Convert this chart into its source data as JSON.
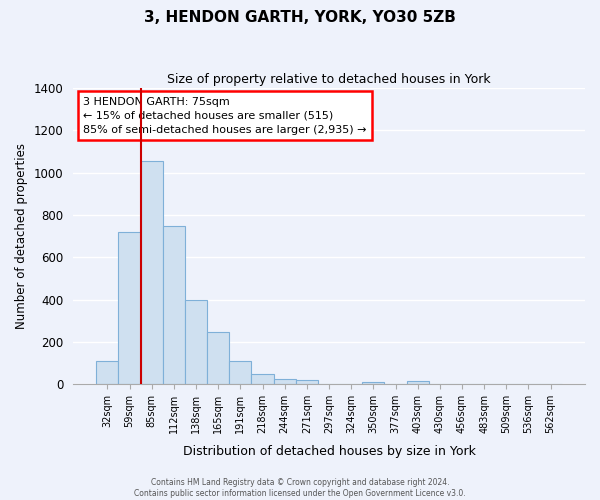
{
  "title": "3, HENDON GARTH, YORK, YO30 5ZB",
  "subtitle": "Size of property relative to detached houses in York",
  "xlabel": "Distribution of detached houses by size in York",
  "ylabel": "Number of detached properties",
  "bar_labels": [
    "32sqm",
    "59sqm",
    "85sqm",
    "112sqm",
    "138sqm",
    "165sqm",
    "191sqm",
    "218sqm",
    "244sqm",
    "271sqm",
    "297sqm",
    "324sqm",
    "350sqm",
    "377sqm",
    "403sqm",
    "430sqm",
    "456sqm",
    "483sqm",
    "509sqm",
    "536sqm",
    "562sqm"
  ],
  "bar_heights": [
    110,
    720,
    1055,
    750,
    400,
    245,
    110,
    50,
    27,
    22,
    0,
    0,
    10,
    0,
    15,
    0,
    0,
    0,
    0,
    0,
    0
  ],
  "bar_color": "#cfe0f0",
  "bar_edge_color": "#7fb0d8",
  "vline_color": "#cc0000",
  "ylim": [
    0,
    1400
  ],
  "yticks": [
    0,
    200,
    400,
    600,
    800,
    1000,
    1200,
    1400
  ],
  "annotation_title": "3 HENDON GARTH: 75sqm",
  "annotation_line1": "← 15% of detached houses are smaller (515)",
  "annotation_line2": "85% of semi-detached houses are larger (2,935) →",
  "footer_line1": "Contains HM Land Registry data © Crown copyright and database right 2024.",
  "footer_line2": "Contains public sector information licensed under the Open Government Licence v3.0.",
  "bg_color": "#eef2fb",
  "grid_color": "#ffffff"
}
